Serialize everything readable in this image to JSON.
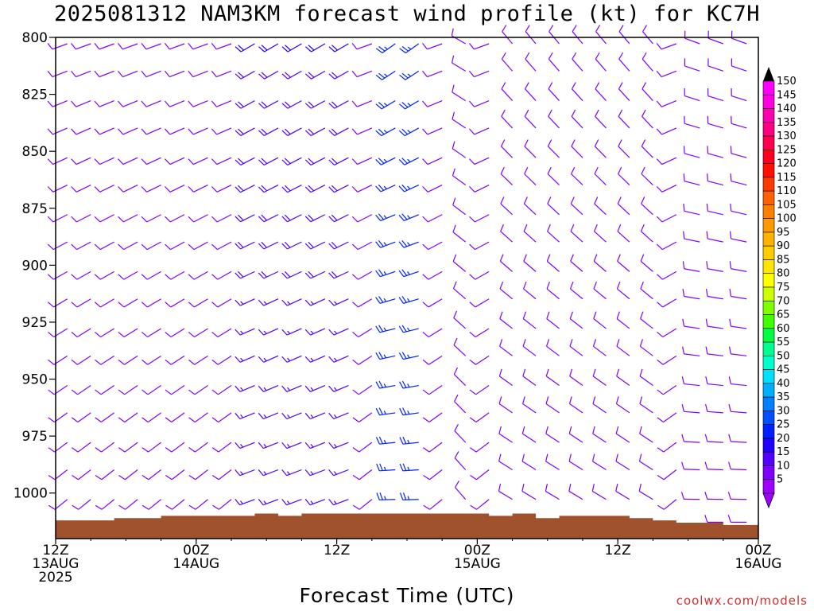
{
  "title": "2025081312 NAM3KM forecast wind profile (kt) for KC7H",
  "credit": "coolwx.com/models",
  "chart_data": {
    "type": "wind-barb-time-height",
    "units": "kt",
    "xlabel": "Forecast Time (UTC)",
    "ylabel": "",
    "y_axis": {
      "ylim": [
        800,
        1020
      ],
      "inverted": true,
      "ticks": [
        "800",
        "825",
        "850",
        "875",
        "900",
        "925",
        "950",
        "975",
        "1000"
      ]
    },
    "x_axis": {
      "range_hours": [
        0,
        60
      ],
      "ticks": [
        {
          "hour": 0,
          "lines": [
            "12Z",
            "13AUG",
            "2025"
          ]
        },
        {
          "hour": 12,
          "lines": [
            "00Z",
            "14AUG"
          ]
        },
        {
          "hour": 24,
          "lines": [
            "12Z"
          ]
        },
        {
          "hour": 36,
          "lines": [
            "00Z",
            "15AUG"
          ]
        },
        {
          "hour": 48,
          "lines": [
            "12Z"
          ]
        },
        {
          "hour": 60,
          "lines": [
            "00Z",
            "16AUG"
          ]
        }
      ]
    },
    "barb_times_hours_step": 2,
    "barb_levels_hpa": [
      800,
      812,
      825,
      837,
      850,
      862,
      875,
      887,
      900,
      912,
      925,
      937,
      950,
      962,
      975,
      987,
      1000,
      1010
    ],
    "surface_pressure_hpa": [
      1012,
      1012,
      1012,
      1011,
      1011,
      1010,
      1010,
      1010,
      1010,
      1009,
      1010,
      1009,
      1009,
      1009,
      1009,
      1009,
      1009,
      1009,
      1009,
      1010,
      1009,
      1011,
      1010,
      1010,
      1010,
      1011,
      1012,
      1013,
      1013,
      1014,
      1014
    ],
    "wind_profile": [
      {
        "hours": [
          0,
          14
        ],
        "low": {
          "dir": 230,
          "spd": 10
        },
        "high": {
          "dir": 250,
          "spd": 12
        }
      },
      {
        "hours": [
          16,
          26
        ],
        "low": {
          "dir": 250,
          "spd": 15
        },
        "high": {
          "dir": 240,
          "spd": 20
        }
      },
      {
        "hours": [
          28,
          32
        ],
        "low": {
          "dir": 270,
          "spd": 25
        },
        "high": {
          "dir": 235,
          "spd": 25
        }
      },
      {
        "hours": [
          34,
          36
        ],
        "low": {
          "dir": 320,
          "spd": 10
        },
        "high": {
          "dir": 300,
          "spd": 10
        }
      },
      {
        "hours": [
          38,
          52
        ],
        "low": {
          "dir": 300,
          "spd": 10
        },
        "high": {
          "dir": 320,
          "spd": 10
        }
      },
      {
        "hours": [
          54,
          60
        ],
        "low": {
          "dir": 270,
          "spd": 10
        },
        "high": {
          "dir": 290,
          "spd": 10
        }
      }
    ],
    "colorbar": {
      "labels": [
        "150",
        "145",
        "140",
        "135",
        "130",
        "125",
        "120",
        "115",
        "110",
        "105",
        "100",
        "95",
        "90",
        "85",
        "80",
        "75",
        "70",
        "65",
        "60",
        "55",
        "50",
        "45",
        "40",
        "35",
        "30",
        "25",
        "20",
        "15",
        "10",
        "5"
      ],
      "colors": [
        "#ff00ff",
        "#ff00e0",
        "#ff00b0",
        "#ff0080",
        "#ff0050",
        "#ff0020",
        "#ff1000",
        "#ff3a00",
        "#ff6000",
        "#ff8000",
        "#ff9900",
        "#ffb300",
        "#ffcc00",
        "#ffe600",
        "#ffff00",
        "#ccff00",
        "#80ff00",
        "#40ff00",
        "#00ff40",
        "#00ff90",
        "#00ffcc",
        "#00e0ff",
        "#00b0ff",
        "#0080ff",
        "#0050ff",
        "#0020ff",
        "#2000ff",
        "#5000ff",
        "#8000ff",
        "#a000ff"
      ]
    },
    "surface_color": "#a0522d",
    "grid": false
  }
}
